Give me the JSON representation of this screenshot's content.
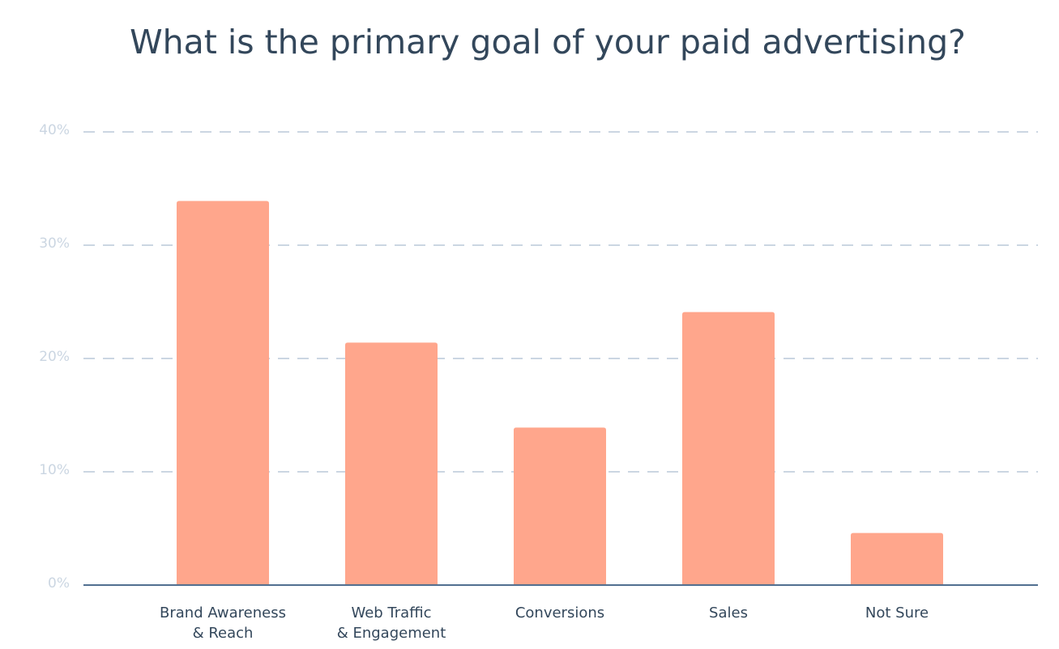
{
  "chart_data": {
    "type": "bar",
    "title": "What is the primary goal of your paid advertising?",
    "categories": [
      "Brand Awareness\n& Reach",
      "Web Traffic\n& Engagement",
      "Conversions",
      "Sales",
      "Not Sure"
    ],
    "values": [
      33.9,
      21.4,
      13.9,
      24.1,
      4.6
    ],
    "color": "#ffa68c",
    "ylim": [
      0,
      40
    ],
    "yticks": [
      {
        "value": 0,
        "label": "0%"
      },
      {
        "value": 10,
        "label": "10%"
      },
      {
        "value": 20,
        "label": "20%"
      },
      {
        "value": 30,
        "label": "30%"
      },
      {
        "value": 40,
        "label": "40%"
      }
    ],
    "grid": true
  }
}
